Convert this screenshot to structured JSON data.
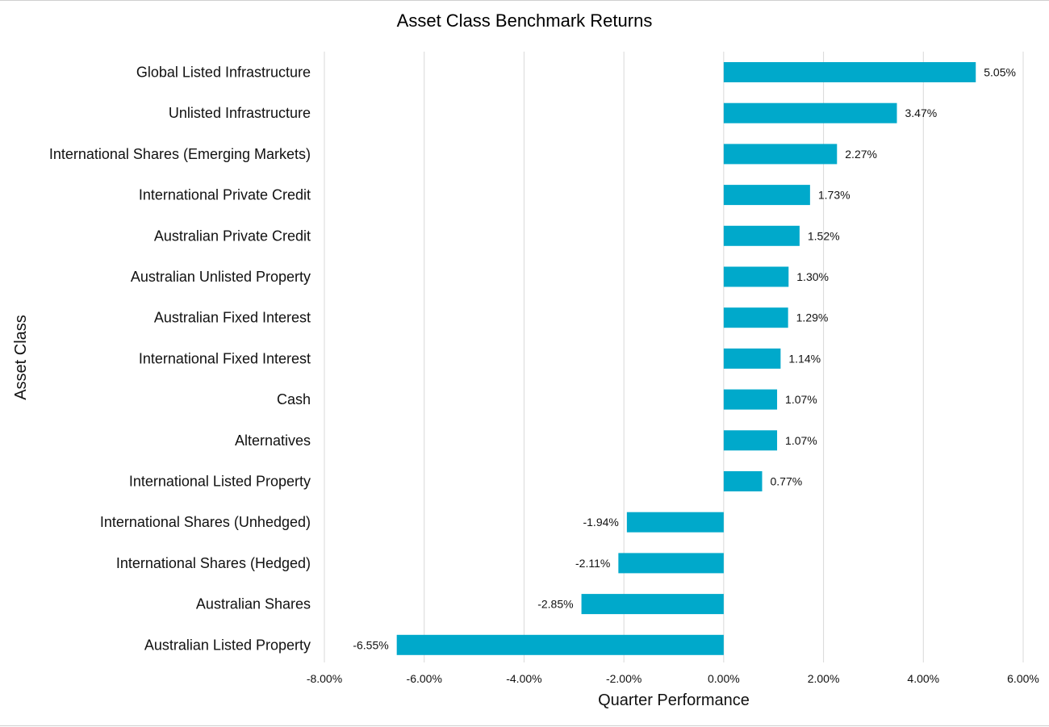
{
  "chart_data": {
    "type": "bar",
    "orientation": "horizontal",
    "title": "Asset Class Benchmark Returns",
    "xlabel": "Quarter Performance",
    "ylabel": "Asset Class",
    "categories": [
      "Global Listed Infrastructure",
      "Unlisted Infrastructure",
      "International Shares (Emerging Markets)",
      "International Private Credit",
      "Australian Private Credit",
      "Australian Unlisted Property",
      "Australian Fixed Interest",
      "International Fixed Interest",
      "Cash",
      "Alternatives",
      "International Listed Property",
      "International Shares (Unhedged)",
      "International Shares (Hedged)",
      "Australian Shares",
      "Australian Listed Property"
    ],
    "values": [
      5.05,
      3.47,
      2.27,
      1.73,
      1.52,
      1.3,
      1.29,
      1.14,
      1.07,
      1.07,
      0.77,
      -1.94,
      -2.11,
      -2.85,
      -6.55
    ],
    "value_labels": [
      "5.05%",
      "3.47%",
      "2.27%",
      "1.73%",
      "1.52%",
      "1.30%",
      "1.29%",
      "1.14%",
      "1.07%",
      "1.07%",
      "0.77%",
      "-1.94%",
      "-2.11%",
      "-2.85%",
      "-6.55%"
    ],
    "xlim": [
      -8,
      6
    ],
    "xticks": [
      -8,
      -6,
      -4,
      -2,
      0,
      2,
      4,
      6
    ],
    "xtick_labels": [
      "-8.00%",
      "-6.00%",
      "-4.00%",
      "-2.00%",
      "0.00%",
      "2.00%",
      "4.00%",
      "6.00%"
    ],
    "grid": "vertical",
    "legend": "none",
    "bar_color": "#00A9CB"
  }
}
